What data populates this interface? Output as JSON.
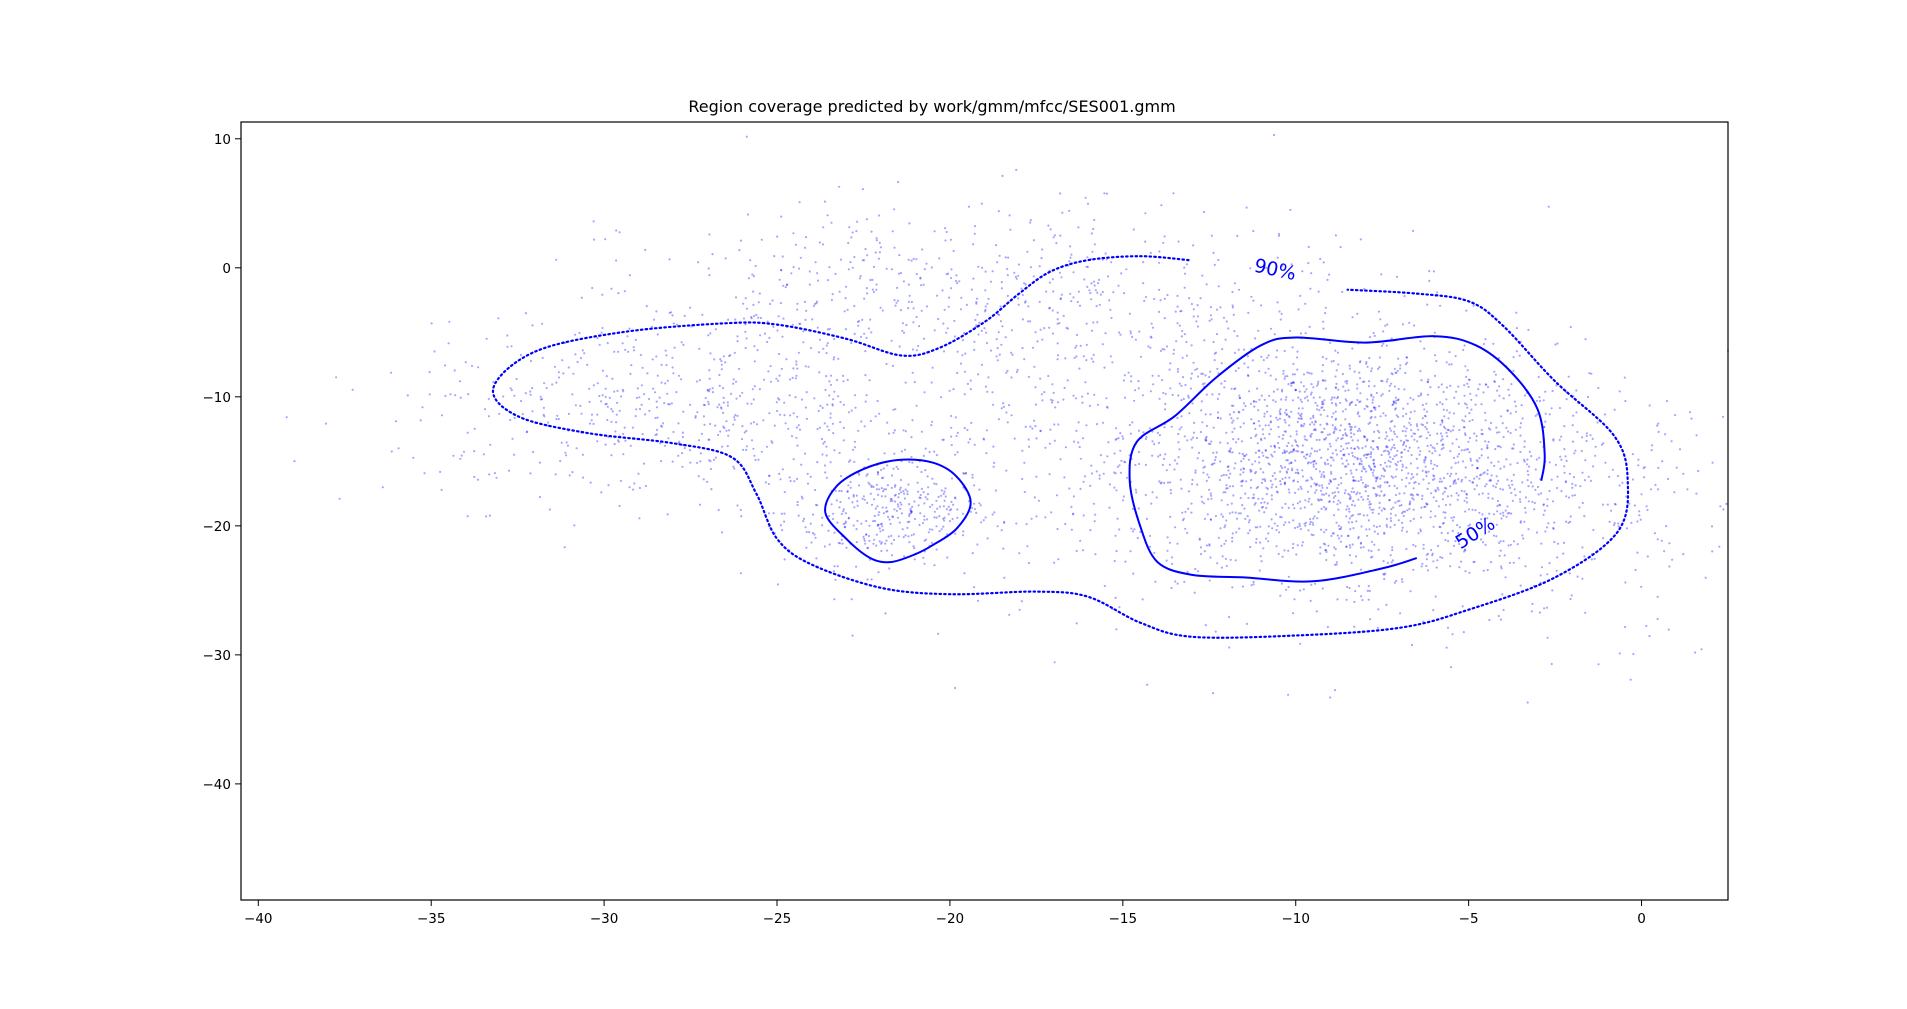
{
  "chart_data": {
    "type": "scatter",
    "title": "Region coverage predicted by work/gmm/mfcc/SES001.gmm",
    "xlabel": "",
    "ylabel": "",
    "xlim": [
      -40.5,
      2.5
    ],
    "ylim": [
      -49,
      11.3
    ],
    "x_ticks": [
      -40,
      -35,
      -30,
      -25,
      -20,
      -15,
      -10,
      -5,
      0
    ],
    "x_tick_labels": [
      "−40",
      "−35",
      "−30",
      "−25",
      "−20",
      "−15",
      "−10",
      "−5",
      "0"
    ],
    "y_ticks": [
      10,
      0,
      -10,
      -20,
      -30,
      -40
    ],
    "y_tick_labels": [
      "10",
      "0",
      "−10",
      "−20",
      "−30",
      "−40"
    ],
    "grid": false,
    "colors": {
      "points": "#0000ff",
      "contour": "#0000ff",
      "axes": "#000000"
    },
    "scatter": {
      "description_count": "approx. 4000 semi-transparent blue points",
      "clusters": [
        {
          "name": "",
          "center": [
            -21.8,
            -18.9
          ],
          "spread": [
            1.5,
            2.0
          ],
          "n": 350
        },
        {
          "name": "",
          "center": [
            -8.5,
            -15
          ],
          "spread": [
            3.0,
            4.5
          ],
          "n": 1500
        },
        {
          "name": "",
          "center": [
            -13,
            -13
          ],
          "spread": [
            6.5,
            6.5
          ],
          "n": 900
        },
        {
          "name": "",
          "center": [
            -28,
            -11
          ],
          "spread": [
            4.0,
            3.5
          ],
          "n": 550
        },
        {
          "name": "",
          "center": [
            -19,
            -2
          ],
          "spread": [
            5.0,
            3.5
          ],
          "n": 550
        },
        {
          "name": "",
          "center": [
            -4,
            -19
          ],
          "spread": [
            3.5,
            5.0
          ],
          "n": 350
        }
      ]
    },
    "contours": [
      {
        "level": "90%",
        "style": "dotted",
        "label": {
          "text": "90%",
          "at": [
            -10.6,
            -0.2
          ],
          "angle": 12
        },
        "points": [
          [
            -13.1,
            0.6
          ],
          [
            -14.5,
            0.9
          ],
          [
            -16.0,
            0.6
          ],
          [
            -17.1,
            -0.3
          ],
          [
            -18.0,
            -2.0
          ],
          [
            -19.0,
            -4.2
          ],
          [
            -20.3,
            -6.2
          ],
          [
            -21.4,
            -6.8
          ],
          [
            -23.0,
            -5.5
          ],
          [
            -25.0,
            -4.4
          ],
          [
            -26.5,
            -4.3
          ],
          [
            -29.5,
            -5.0
          ],
          [
            -32.0,
            -6.5
          ],
          [
            -33.2,
            -9.3
          ],
          [
            -32.5,
            -11.5
          ],
          [
            -30.5,
            -12.8
          ],
          [
            -28.0,
            -13.6
          ],
          [
            -26.3,
            -14.7
          ],
          [
            -25.6,
            -17.5
          ],
          [
            -25.0,
            -21.0
          ],
          [
            -24.0,
            -23.0
          ],
          [
            -22.0,
            -24.8
          ],
          [
            -20.0,
            -25.3
          ],
          [
            -17.5,
            -25.1
          ],
          [
            -16.0,
            -25.5
          ],
          [
            -14.5,
            -27.5
          ],
          [
            -13.0,
            -28.6
          ],
          [
            -10.0,
            -28.5
          ],
          [
            -7.0,
            -27.9
          ],
          [
            -5.0,
            -26.5
          ],
          [
            -2.5,
            -24.0
          ],
          [
            -0.7,
            -20.5
          ],
          [
            -0.4,
            -16.5
          ],
          [
            -0.8,
            -13.0
          ],
          [
            -2.5,
            -8.8
          ],
          [
            -4.0,
            -4.5
          ],
          [
            -5.0,
            -2.6
          ],
          [
            -6.5,
            -2.0
          ],
          [
            -8.5,
            -1.7
          ]
        ]
      },
      {
        "level": "50%",
        "style": "solid",
        "label": {
          "text": "50%",
          "at": [
            -4.8,
            -20.6
          ],
          "angle": -32
        },
        "points": [
          [
            -6.5,
            -22.5
          ],
          [
            -7.5,
            -23.3
          ],
          [
            -9.5,
            -24.3
          ],
          [
            -11.5,
            -24.0
          ],
          [
            -13.0,
            -23.8
          ],
          [
            -14.0,
            -22.8
          ],
          [
            -14.5,
            -20.0
          ],
          [
            -14.8,
            -16.5
          ],
          [
            -14.6,
            -13.5
          ],
          [
            -13.5,
            -11.5
          ],
          [
            -12.3,
            -8.5
          ],
          [
            -11.0,
            -6.0
          ],
          [
            -10.0,
            -5.4
          ],
          [
            -8.0,
            -5.8
          ],
          [
            -6.0,
            -5.3
          ],
          [
            -4.8,
            -6.0
          ],
          [
            -3.8,
            -8.0
          ],
          [
            -3.0,
            -11.0
          ],
          [
            -2.8,
            -14.5
          ],
          [
            -2.9,
            -16.5
          ]
        ]
      },
      {
        "level": "50%",
        "style": "solid",
        "label": null,
        "closed": true,
        "points": [
          [
            -20.5,
            -15.1
          ],
          [
            -21.5,
            -14.9
          ],
          [
            -22.5,
            -15.6
          ],
          [
            -23.3,
            -17.0
          ],
          [
            -23.6,
            -19.0
          ],
          [
            -23.0,
            -21.0
          ],
          [
            -22.3,
            -22.5
          ],
          [
            -21.7,
            -22.8
          ],
          [
            -21.0,
            -22.2
          ],
          [
            -20.5,
            -21.5
          ],
          [
            -19.8,
            -20.2
          ],
          [
            -19.4,
            -18.2
          ],
          [
            -19.8,
            -16.2
          ]
        ]
      }
    ]
  }
}
